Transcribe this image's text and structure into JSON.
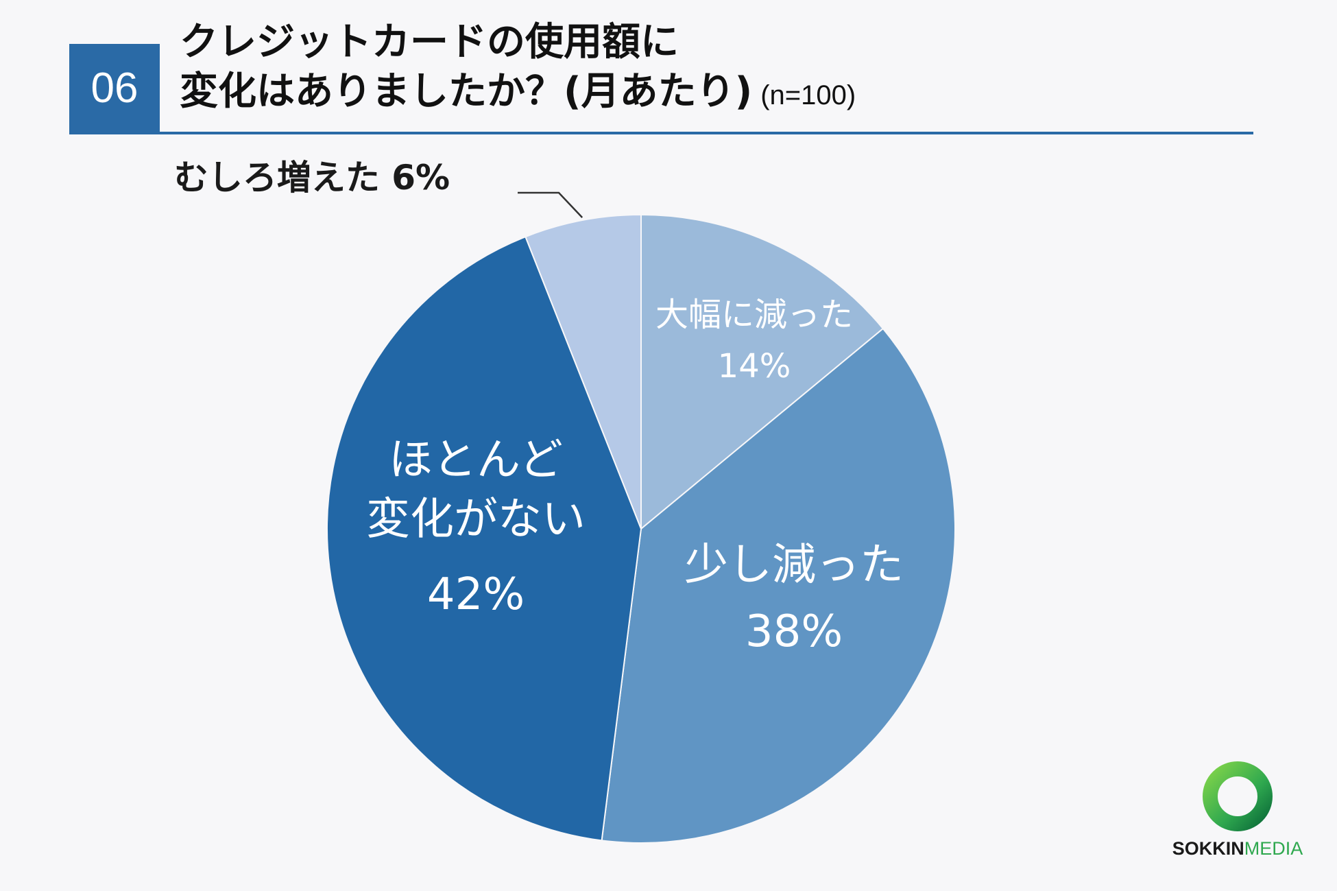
{
  "header": {
    "number": "06",
    "title_line1": "クレジットカードの使用額に",
    "title_line2": "変化はありましたか？(月あたり)",
    "sample_size": "(n=100)"
  },
  "chart_data": {
    "type": "pie",
    "start_angle_deg": 0,
    "direction": "clockwise",
    "slices": [
      {
        "label": "大幅に減った",
        "value": 14,
        "value_label": "14%",
        "color": "#9bbada",
        "text_color": "#ffffff"
      },
      {
        "label": "少し減った",
        "value": 38,
        "value_label": "38%",
        "color": "#6095c4",
        "text_color": "#ffffff"
      },
      {
        "label": "ほとんど変化がない",
        "value": 42,
        "value_label": "42%",
        "color": "#2267a6",
        "text_color": "#ffffff"
      },
      {
        "label": "むしろ増えた",
        "value": 6,
        "value_label": "6%",
        "color": "#b5c9e7",
        "text_color": "#1a1a1a"
      }
    ]
  },
  "logo": {
    "brand_part1": "SOKKIN",
    "brand_part2": "MEDIA",
    "ring_color": "#2fa84f"
  }
}
